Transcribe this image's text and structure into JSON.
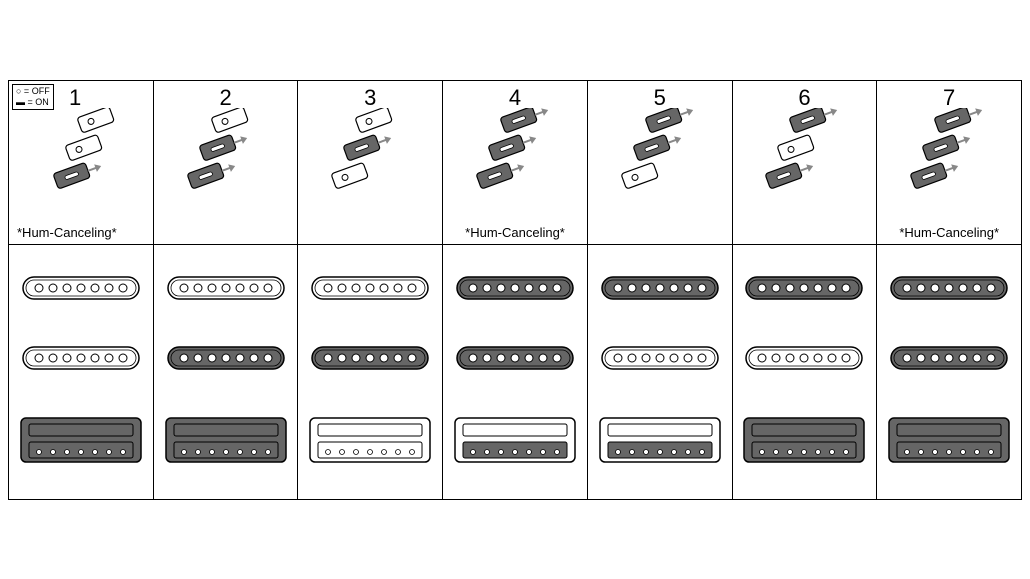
{
  "legend": {
    "off": "○ = OFF",
    "on": "▬ = ON"
  },
  "hum_label": "*Hum-Canceling*",
  "columns": [
    {
      "num": "1",
      "hum": true,
      "sw": [
        false,
        false,
        true
      ],
      "neck": false,
      "mid": false,
      "bridge_top": true,
      "bridge_bot": true
    },
    {
      "num": "2",
      "hum": false,
      "sw": [
        false,
        true,
        true
      ],
      "neck": false,
      "mid": true,
      "bridge_top": true,
      "bridge_bot": true
    },
    {
      "num": "3",
      "hum": false,
      "sw": [
        false,
        true,
        false
      ],
      "neck": false,
      "mid": true,
      "bridge_top": false,
      "bridge_bot": false
    },
    {
      "num": "4",
      "hum": true,
      "sw": [
        true,
        true,
        true
      ],
      "neck": true,
      "mid": true,
      "bridge_top": false,
      "bridge_bot": true
    },
    {
      "num": "5",
      "hum": false,
      "sw": [
        true,
        true,
        false
      ],
      "neck": true,
      "mid": false,
      "bridge_top": false,
      "bridge_bot": true
    },
    {
      "num": "6",
      "hum": false,
      "sw": [
        true,
        false,
        true
      ],
      "neck": true,
      "mid": false,
      "bridge_top": true,
      "bridge_bot": true
    },
    {
      "num": "7",
      "hum": true,
      "sw": [
        true,
        true,
        true
      ],
      "neck": true,
      "mid": true,
      "bridge_top": true,
      "bridge_bot": true
    }
  ],
  "colors": {
    "on_fill": "#666666",
    "off_fill": "#ffffff",
    "stroke": "#000000",
    "arrow": "#888888"
  }
}
